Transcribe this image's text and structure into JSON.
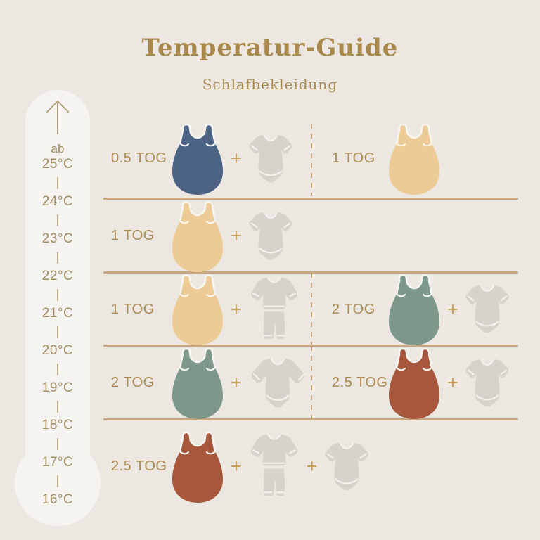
{
  "header": {
    "title": "Temperatur-Guide",
    "subtitle": "Schlafbekleidung"
  },
  "thermometer": {
    "arrow_icon": "arrow-up-icon",
    "prefix": "ab",
    "temps": [
      "25°C",
      "24°C",
      "23°C",
      "22°C",
      "21°C",
      "20°C",
      "19°C",
      "18°C",
      "17°C",
      "16°C"
    ]
  },
  "rows": [
    {
      "left": {
        "tog": "0.5 TOG",
        "bag": "navy",
        "garments": [
          "bodysuit-short"
        ]
      },
      "right": {
        "tog": "1 TOG",
        "bag": "beige",
        "garments": []
      }
    },
    {
      "left": {
        "tog": "1 TOG",
        "bag": "beige",
        "garments": [
          "bodysuit-short"
        ]
      },
      "right": null
    },
    {
      "left": {
        "tog": "1 TOG",
        "bag": "beige",
        "garments": [
          "pajamas"
        ]
      },
      "right": {
        "tog": "2 TOG",
        "bag": "green",
        "garments": [
          "bodysuit-short"
        ]
      }
    },
    {
      "left": {
        "tog": "2 TOG",
        "bag": "green",
        "garments": [
          "bodysuit-long"
        ]
      },
      "right": {
        "tog": "2.5 TOG",
        "bag": "rust",
        "garments": [
          "bodysuit-short"
        ]
      }
    },
    {
      "left": {
        "tog": "2.5 TOG",
        "bag": "rust",
        "garments": [
          "pajamas",
          "bodysuit-short"
        ]
      },
      "right": null
    }
  ],
  "symbols": {
    "plus": "+"
  },
  "colors": {
    "background": "#ECE8E1",
    "thermometer_fill": "#F6F4F0",
    "accent_gold": "#A8894B",
    "tog_label": "#AD8C55",
    "temp_label": "#A28B60",
    "plus_sign": "#C79B55",
    "divider_line": "#C8A77F",
    "garment_gray": "#D6D3CC",
    "bags": {
      "navy": "#4C6386",
      "beige": "#EDCB96",
      "green": "#7E998C",
      "rust": "#A7573C"
    }
  }
}
